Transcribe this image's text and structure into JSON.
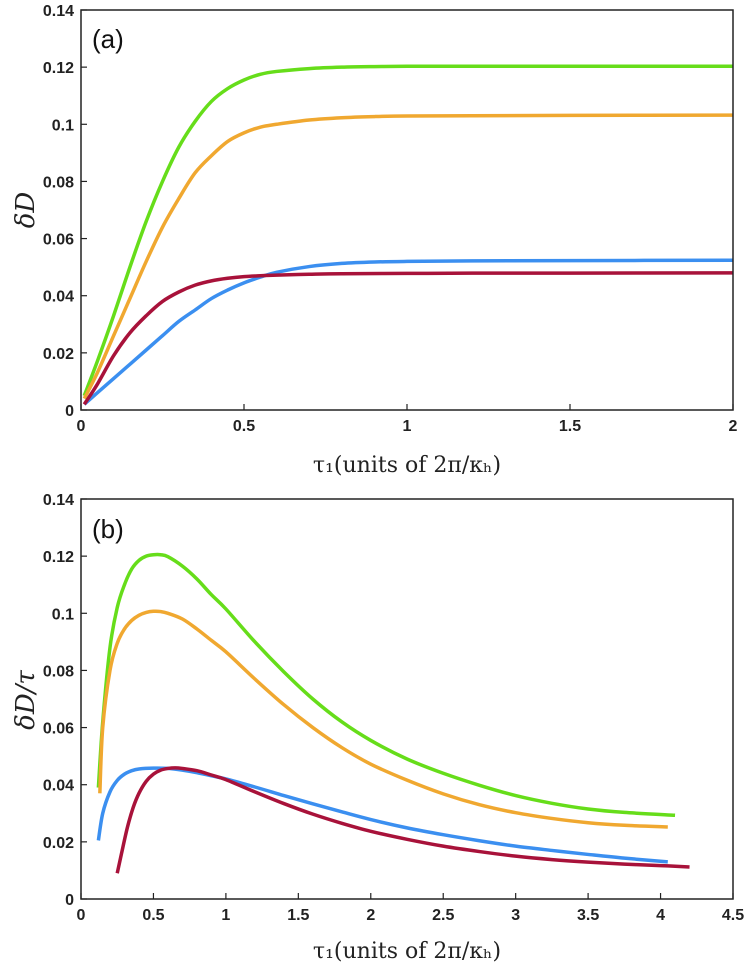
{
  "chart_data": [
    {
      "type": "line",
      "panel_label": "(a)",
      "xlabel": "τ₁(units of 2π/κₕ)",
      "ylabel": "δD",
      "xlim": [
        0,
        2
      ],
      "ylim": [
        0,
        0.14
      ],
      "xticks": [
        0,
        0.5,
        1,
        1.5,
        2
      ],
      "xtick_labels": [
        "0",
        "0.5",
        "1",
        "1.5",
        "2"
      ],
      "yticks": [
        0,
        0.02,
        0.04,
        0.06,
        0.08,
        0.1,
        0.12,
        0.14
      ],
      "ytick_labels": [
        "0",
        "0.02",
        "0.04",
        "0.06",
        "0.08",
        "0.1",
        "0.12",
        "0.14"
      ],
      "series": [
        {
          "name": "green",
          "color": "#66dd1a",
          "x": [
            0.01,
            0.05,
            0.1,
            0.15,
            0.2,
            0.25,
            0.3,
            0.35,
            0.4,
            0.45,
            0.5,
            0.55,
            0.6,
            0.7,
            0.8,
            0.9,
            1.0,
            1.2,
            1.5,
            2.0
          ],
          "y": [
            0.005,
            0.017,
            0.033,
            0.05,
            0.066,
            0.08,
            0.092,
            0.101,
            0.108,
            0.1125,
            0.1155,
            0.1175,
            0.1185,
            0.1195,
            0.12,
            0.1202,
            0.1203,
            0.1203,
            0.1203,
            0.1203
          ]
        },
        {
          "name": "orange",
          "color": "#f0a830",
          "x": [
            0.01,
            0.05,
            0.1,
            0.15,
            0.2,
            0.25,
            0.3,
            0.35,
            0.4,
            0.45,
            0.5,
            0.55,
            0.6,
            0.7,
            0.8,
            0.9,
            1.0,
            1.2,
            1.5,
            2.0
          ],
          "y": [
            0.004,
            0.013,
            0.026,
            0.039,
            0.052,
            0.064,
            0.074,
            0.083,
            0.089,
            0.094,
            0.097,
            0.099,
            0.1,
            0.1015,
            0.1023,
            0.1027,
            0.1029,
            0.103,
            0.1031,
            0.1032
          ]
        },
        {
          "name": "blue",
          "color": "#3b8ff0",
          "x": [
            0.01,
            0.05,
            0.1,
            0.15,
            0.2,
            0.25,
            0.3,
            0.35,
            0.4,
            0.45,
            0.5,
            0.55,
            0.6,
            0.7,
            0.8,
            0.9,
            1.0,
            1.2,
            1.5,
            2.0
          ],
          "y": [
            0.002,
            0.006,
            0.011,
            0.016,
            0.021,
            0.026,
            0.031,
            0.035,
            0.039,
            0.042,
            0.0445,
            0.0465,
            0.0482,
            0.0502,
            0.0513,
            0.0518,
            0.052,
            0.0522,
            0.0523,
            0.0524
          ]
        },
        {
          "name": "crimson",
          "color": "#a8123a",
          "x": [
            0.01,
            0.05,
            0.1,
            0.15,
            0.2,
            0.25,
            0.3,
            0.35,
            0.4,
            0.45,
            0.5,
            0.55,
            0.6,
            0.7,
            0.8,
            1.0,
            1.2,
            1.5,
            2.0
          ],
          "y": [
            0.002,
            0.009,
            0.019,
            0.027,
            0.033,
            0.038,
            0.0413,
            0.0437,
            0.0452,
            0.0461,
            0.0467,
            0.047,
            0.0472,
            0.0475,
            0.0477,
            0.0478,
            0.0479,
            0.0479,
            0.048
          ]
        }
      ]
    },
    {
      "type": "line",
      "panel_label": "(b)",
      "xlabel": "τ₁(units of 2π/κₕ)",
      "ylabel": "δD/τ",
      "xlim": [
        0,
        4.5
      ],
      "ylim": [
        0,
        0.14
      ],
      "xticks": [
        0,
        0.5,
        1,
        1.5,
        2,
        2.5,
        3,
        3.5,
        4,
        4.5
      ],
      "xtick_labels": [
        "0",
        "0.5",
        "1",
        "1.5",
        "2",
        "2.5",
        "3",
        "3.5",
        "4",
        "4.5"
      ],
      "yticks": [
        0,
        0.02,
        0.04,
        0.06,
        0.08,
        0.1,
        0.12,
        0.14
      ],
      "ytick_labels": [
        "0",
        "0.02",
        "0.04",
        "0.06",
        "0.08",
        "0.1",
        "0.12",
        "0.14"
      ],
      "series": [
        {
          "name": "green",
          "color": "#66dd1a",
          "x": [
            0.12,
            0.15,
            0.2,
            0.25,
            0.3,
            0.35,
            0.4,
            0.45,
            0.5,
            0.55,
            0.6,
            0.7,
            0.8,
            0.9,
            1.0,
            1.2,
            1.4,
            1.6,
            1.8,
            2.0,
            2.25,
            2.5,
            2.75,
            3.0,
            3.25,
            3.5,
            3.75,
            4.1
          ],
          "y": [
            0.039,
            0.062,
            0.088,
            0.102,
            0.11,
            0.1155,
            0.1185,
            0.12,
            0.1205,
            0.1205,
            0.1198,
            0.1165,
            0.112,
            0.1065,
            0.1015,
            0.09,
            0.0795,
            0.07,
            0.062,
            0.0555,
            0.049,
            0.044,
            0.0398,
            0.0362,
            0.0335,
            0.0315,
            0.0303,
            0.0293
          ]
        },
        {
          "name": "orange",
          "color": "#f0a830",
          "x": [
            0.13,
            0.15,
            0.2,
            0.25,
            0.3,
            0.35,
            0.4,
            0.45,
            0.5,
            0.55,
            0.6,
            0.7,
            0.8,
            0.9,
            1.0,
            1.2,
            1.4,
            1.6,
            1.8,
            2.0,
            2.25,
            2.5,
            2.75,
            3.0,
            3.25,
            3.5,
            3.75,
            4.05
          ],
          "y": [
            0.037,
            0.06,
            0.08,
            0.0895,
            0.0945,
            0.0975,
            0.0993,
            0.1003,
            0.1007,
            0.1006,
            0.1,
            0.098,
            0.0945,
            0.0905,
            0.0865,
            0.077,
            0.068,
            0.06,
            0.053,
            0.0472,
            0.0416,
            0.0368,
            0.033,
            0.0302,
            0.0282,
            0.0267,
            0.0258,
            0.0252
          ]
        },
        {
          "name": "blue",
          "color": "#3b8ff0",
          "x": [
            0.12,
            0.15,
            0.2,
            0.25,
            0.3,
            0.35,
            0.4,
            0.5,
            0.6,
            0.7,
            0.8,
            1.0,
            1.2,
            1.4,
            1.6,
            1.8,
            2.0,
            2.25,
            2.5,
            2.75,
            3.0,
            3.25,
            3.5,
            3.75,
            4.05
          ],
          "y": [
            0.0205,
            0.03,
            0.0375,
            0.0415,
            0.0437,
            0.0449,
            0.0455,
            0.0458,
            0.0457,
            0.0451,
            0.0442,
            0.042,
            0.0392,
            0.0362,
            0.0333,
            0.0305,
            0.0278,
            0.0249,
            0.0225,
            0.0204,
            0.0185,
            0.017,
            0.0156,
            0.0143,
            0.013
          ]
        },
        {
          "name": "crimson",
          "color": "#a8123a",
          "x": [
            0.25,
            0.28,
            0.32,
            0.36,
            0.4,
            0.45,
            0.5,
            0.55,
            0.6,
            0.65,
            0.7,
            0.8,
            0.9,
            1.0,
            1.2,
            1.4,
            1.6,
            1.8,
            2.0,
            2.25,
            2.5,
            2.75,
            3.0,
            3.25,
            3.5,
            3.75,
            4.0,
            4.2
          ],
          "y": [
            0.009,
            0.016,
            0.025,
            0.032,
            0.037,
            0.0412,
            0.0437,
            0.0451,
            0.0457,
            0.0459,
            0.0457,
            0.0449,
            0.0434,
            0.0418,
            0.0375,
            0.0334,
            0.0297,
            0.0265,
            0.0237,
            0.0209,
            0.0185,
            0.0166,
            0.015,
            0.0138,
            0.0129,
            0.0122,
            0.0117,
            0.0112
          ]
        }
      ]
    }
  ]
}
